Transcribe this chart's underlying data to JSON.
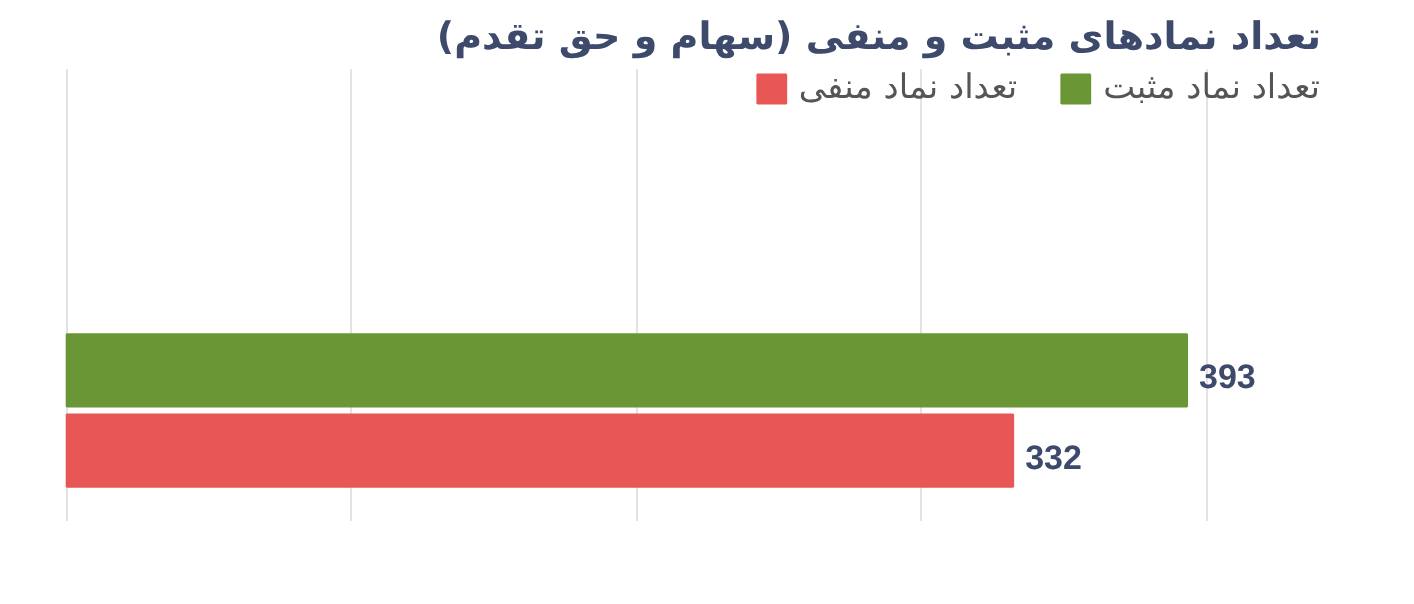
{
  "chart_data": {
    "type": "bar",
    "orientation": "horizontal",
    "title": "تعداد نمادهای مثبت و منفی (سهام و حق تقدم)",
    "categories": [
      null
    ],
    "series": [
      {
        "name": "تعداد نماد مثبت",
        "color": "#6a9636",
        "values": [
          393
        ]
      },
      {
        "name": "تعداد نماد منفی",
        "color": "#e85656",
        "values": [
          332
        ]
      }
    ],
    "xticks": [
      {
        "value": 0,
        "label": null
      },
      {
        "value": 100,
        "label": null
      },
      {
        "value": 200,
        "label": null
      },
      {
        "value": 300,
        "label": null
      },
      {
        "value": 400,
        "label": null
      }
    ],
    "grid": "x",
    "legend": "top right",
    "data_labels": true
  }
}
